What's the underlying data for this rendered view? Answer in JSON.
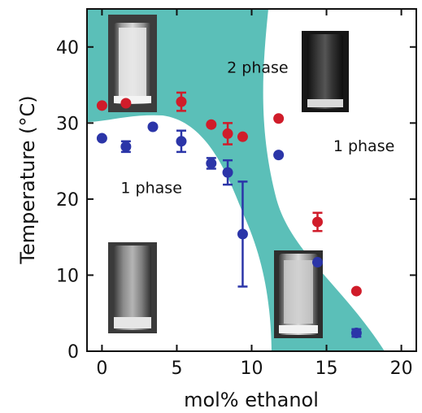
{
  "chart_data": {
    "type": "scatter",
    "xlabel": "mol% ethanol",
    "ylabel": "Temperature (°C)",
    "xlim": [
      -1,
      21
    ],
    "ylim": [
      0,
      45
    ],
    "xticks": [
      0,
      5,
      10,
      15,
      20
    ],
    "yticks": [
      0,
      10,
      20,
      30,
      40
    ],
    "grid": false,
    "colors": {
      "two_phase_region": "#5bbfb8",
      "red_series": "#d01c2a",
      "blue_series": "#2b35a8",
      "frame": "#111111"
    },
    "region_labels": [
      {
        "text": "2 phase",
        "x": 10.4,
        "y": 36.6
      },
      {
        "text": "1 phase",
        "x": 3.3,
        "y": 20.8
      },
      {
        "text": "1 phase",
        "x": 17.5,
        "y": 26.3
      }
    ],
    "series": [
      {
        "color": "red_series",
        "x": [
          0,
          1.6,
          5.3,
          7.3,
          8.4,
          9.4,
          11.8,
          14.4,
          17.0
        ],
        "y": [
          32.3,
          32.6,
          32.8,
          29.8,
          28.6,
          28.2,
          30.6,
          17.0,
          7.9
        ],
        "err": [
          0,
          0,
          1.2,
          0,
          1.4,
          0,
          0,
          1.2,
          0
        ]
      },
      {
        "color": "blue_series",
        "x": [
          0,
          1.6,
          3.4,
          5.3,
          7.3,
          8.4,
          9.4,
          11.8,
          14.4,
          17.0
        ],
        "y": [
          28.0,
          26.9,
          29.5,
          27.6,
          24.7,
          23.5,
          15.4,
          25.8,
          11.7,
          2.4
        ],
        "err": [
          0,
          0.7,
          0,
          1.4,
          0.7,
          1.6,
          6.9,
          0,
          0,
          0.5
        ]
      }
    ]
  }
}
